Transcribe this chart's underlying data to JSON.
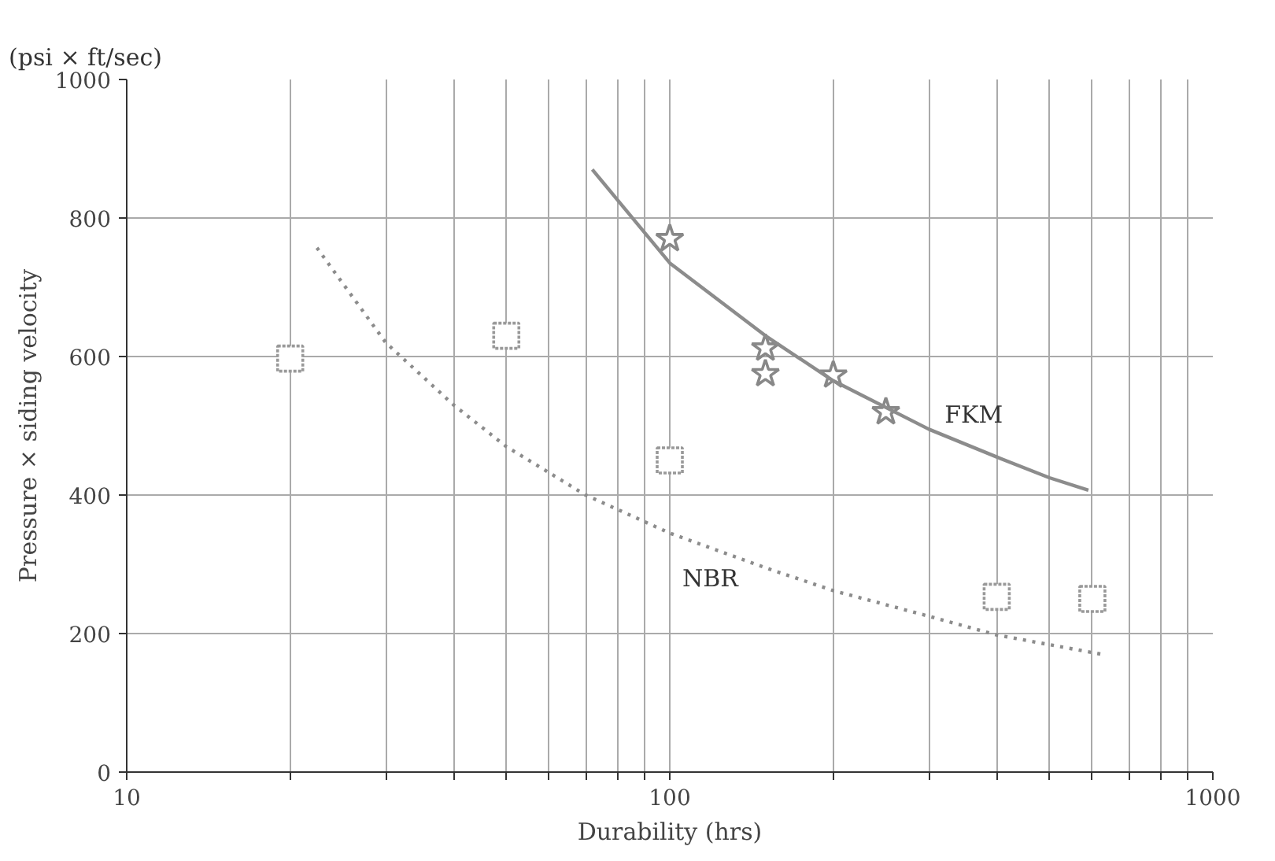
{
  "chart_data": {
    "type": "scatter",
    "xlabel": "Durability (hrs)",
    "ylabel": "Pressure × siding velocity",
    "log": "x",
    "grid": true,
    "legend": false,
    "xlim": [
      10,
      1000
    ],
    "ylim": [
      0,
      1000
    ],
    "xticks": [
      10,
      {
        "value": 20,
        "label": null
      },
      {
        "value": 30,
        "label": null
      },
      {
        "value": 40,
        "label": null
      },
      {
        "value": 50,
        "label": null
      },
      {
        "value": 60,
        "label": null
      },
      {
        "value": 70,
        "label": null
      },
      {
        "value": 80,
        "label": null
      },
      {
        "value": 90,
        "label": null
      },
      100,
      {
        "value": 200,
        "label": null
      },
      {
        "value": 300,
        "label": null
      },
      {
        "value": 400,
        "label": null
      },
      {
        "value": 500,
        "label": null
      },
      {
        "value": 600,
        "label": null
      },
      {
        "value": 700,
        "label": null
      },
      {
        "value": 800,
        "label": null
      },
      {
        "value": 900,
        "label": null
      },
      1000
    ],
    "yticks": [
      0,
      200,
      400,
      600,
      800,
      1000
    ],
    "series": [
      {
        "marker": "star",
        "color": "#888888",
        "x": [
          100,
          150,
          150,
          200,
          250
        ],
        "values": [
          770,
          612,
          575,
          573,
          520
        ]
      },
      {
        "marker": "square",
        "color": "#999999",
        "x": [
          20,
          50,
          100,
          400,
          600
        ],
        "values": [
          597,
          630,
          450,
          253,
          250
        ]
      },
      {
        "type": "line",
        "name": "FKM",
        "line_style": "solid",
        "color": "#8c8c8c",
        "x": [
          72,
          100,
          150,
          200,
          300,
          400,
          500,
          590
        ],
        "values": [
          870,
          735,
          630,
          565,
          495,
          455,
          425,
          407
        ]
      },
      {
        "type": "line",
        "name": "NBR",
        "line_style": "dotted",
        "color": "#8c8c8c",
        "x": [
          22.4,
          30,
          40,
          50,
          70,
          100,
          150,
          200,
          300,
          400,
          625
        ],
        "values": [
          757,
          620,
          530,
          470,
          400,
          345,
          295,
          262,
          225,
          198,
          170
        ]
      }
    ],
    "annotations": [
      "(psi × ft/sec)"
    ]
  }
}
